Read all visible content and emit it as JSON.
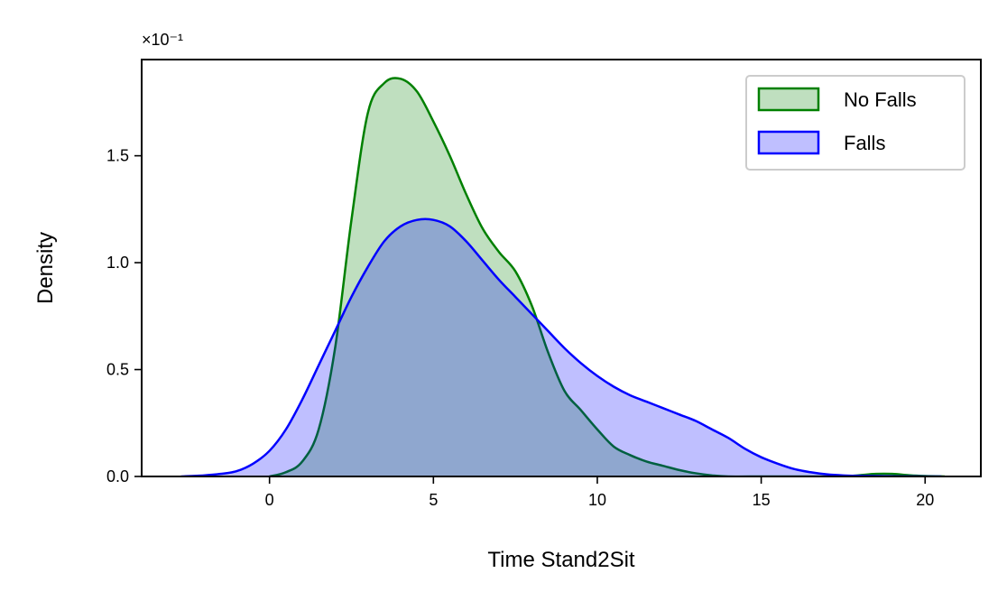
{
  "chart_data": {
    "type": "area",
    "xlabel": "Time Stand2Sit",
    "ylabel": "Density",
    "y_offset_text": "×10⁻¹",
    "xlim": [
      -3.9,
      21.7
    ],
    "ylim": [
      0,
      1.95
    ],
    "xticks": [
      0,
      5,
      10,
      15,
      20
    ],
    "yticks": [
      0.0,
      0.5,
      1.0,
      1.5
    ],
    "xtick_labels": [
      "0",
      "5",
      "10",
      "15",
      "20"
    ],
    "ytick_labels": [
      "0.0",
      "0.5",
      "1.0",
      "1.5"
    ],
    "grid": false,
    "legend_position": "top-right",
    "series": [
      {
        "name": "No Falls",
        "color": "#008000",
        "fill": "#008000",
        "x": [
          0,
          0.5,
          1.0,
          1.5,
          2.0,
          2.5,
          3.0,
          3.5,
          4.0,
          4.5,
          5.0,
          5.5,
          6.0,
          6.5,
          7.0,
          7.5,
          8.0,
          8.5,
          9.0,
          9.5,
          10.0,
          10.5,
          11.0,
          11.5,
          12.0,
          12.5,
          13.0,
          13.5,
          14.0,
          15.0,
          16.0,
          17.0,
          17.5,
          18.0,
          18.5,
          19.0,
          19.5,
          20.0,
          20.6
        ],
        "y": [
          0.0,
          0.02,
          0.07,
          0.22,
          0.6,
          1.2,
          1.7,
          1.84,
          1.86,
          1.8,
          1.66,
          1.5,
          1.32,
          1.16,
          1.05,
          0.96,
          0.8,
          0.58,
          0.4,
          0.31,
          0.22,
          0.14,
          0.1,
          0.07,
          0.05,
          0.03,
          0.015,
          0.005,
          0.0,
          0.0,
          0.0,
          0.0,
          0.0,
          0.006,
          0.012,
          0.012,
          0.006,
          0.002,
          0.0
        ]
      },
      {
        "name": "Falls",
        "color": "#0000ff",
        "fill": "#0000ff",
        "x": [
          -2.7,
          -2.0,
          -1.5,
          -1.0,
          -0.5,
          0.0,
          0.5,
          1.0,
          1.5,
          2.0,
          2.5,
          3.0,
          3.5,
          4.0,
          4.5,
          5.0,
          5.5,
          6.0,
          6.5,
          7.0,
          7.5,
          8.0,
          8.5,
          9.0,
          9.5,
          10.0,
          10.5,
          11.0,
          11.5,
          12.0,
          12.5,
          13.0,
          13.5,
          14.0,
          14.5,
          15.0,
          15.5,
          16.0,
          16.5,
          17.0,
          17.5,
          18.0,
          18.5,
          19.0,
          19.5,
          20.0,
          20.5
        ],
        "y": [
          0.0,
          0.005,
          0.012,
          0.025,
          0.06,
          0.12,
          0.22,
          0.36,
          0.52,
          0.68,
          0.84,
          0.98,
          1.1,
          1.17,
          1.2,
          1.2,
          1.17,
          1.1,
          1.01,
          0.92,
          0.84,
          0.76,
          0.68,
          0.6,
          0.53,
          0.47,
          0.42,
          0.38,
          0.35,
          0.32,
          0.29,
          0.26,
          0.22,
          0.18,
          0.13,
          0.09,
          0.06,
          0.035,
          0.02,
          0.01,
          0.005,
          0.003,
          0.002,
          0.001,
          0.0005,
          0.0002,
          0.0
        ]
      }
    ]
  }
}
